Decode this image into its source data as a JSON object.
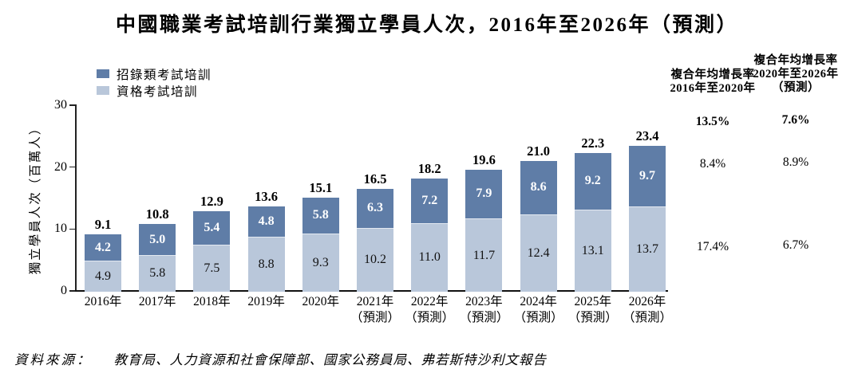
{
  "title": "中國職業考試培訓行業獨立學員人次，2016年至2026年（預測）",
  "colors": {
    "recruitment_dark": "#5f7da7",
    "qualification_light": "#b9c7da",
    "axis": "#222222",
    "dark_segment_text": "#ffffff"
  },
  "legend": {
    "items": [
      {
        "label": "招錄類考試培訓",
        "color": "#5f7da7"
      },
      {
        "label": "資格考試培訓",
        "color": "#b9c7da"
      }
    ]
  },
  "y_axis": {
    "title": "獨立學員人次（百萬人）",
    "ticks": [
      0,
      10,
      20,
      30
    ],
    "max": 30
  },
  "chart_data": {
    "type": "bar",
    "stacked": true,
    "title": "中國職業考試培訓行業獨立學員人次，2016年至2026年（預測）",
    "ylabel": "獨立學員人次（百萬人）",
    "ylim": [
      0,
      30
    ],
    "grid": false,
    "legend_position": "top-left",
    "categories": [
      "2016年",
      "2017年",
      "2018年",
      "2019年",
      "2020年",
      "2021年\n（預測）",
      "2022年\n（預測）",
      "2023年\n（預測）",
      "2024年\n（預測）",
      "2025年\n（預測）",
      "2026年\n（預測）"
    ],
    "series": [
      {
        "name": "招錄類考試培訓",
        "color": "#5f7da7",
        "values": [
          4.2,
          5.0,
          5.4,
          4.8,
          5.8,
          6.3,
          7.2,
          7.9,
          8.6,
          9.2,
          9.7
        ]
      },
      {
        "name": "資格考試培訓",
        "color": "#b9c7da",
        "values": [
          4.9,
          5.8,
          7.5,
          8.8,
          9.3,
          10.2,
          11.0,
          11.7,
          12.4,
          13.1,
          13.7
        ]
      }
    ],
    "totals": [
      9.1,
      10.8,
      12.9,
      13.6,
      15.1,
      16.5,
      18.2,
      19.6,
      21.0,
      22.3,
      23.4
    ]
  },
  "cagr": {
    "columns": [
      {
        "header": "複合年均增長率\n2016年至2020年",
        "values": [
          "13.5%",
          "8.4%",
          "17.4%"
        ]
      },
      {
        "header": "複合年均增長率\n2020年至2026年\n（預測）",
        "values": [
          "7.6%",
          "8.9%",
          "6.7%"
        ]
      }
    ]
  },
  "source": {
    "prefix": "資料來源：",
    "text": "教育局、人力資源和社會保障部、國家公務員局、弗若斯特沙利文報告"
  }
}
